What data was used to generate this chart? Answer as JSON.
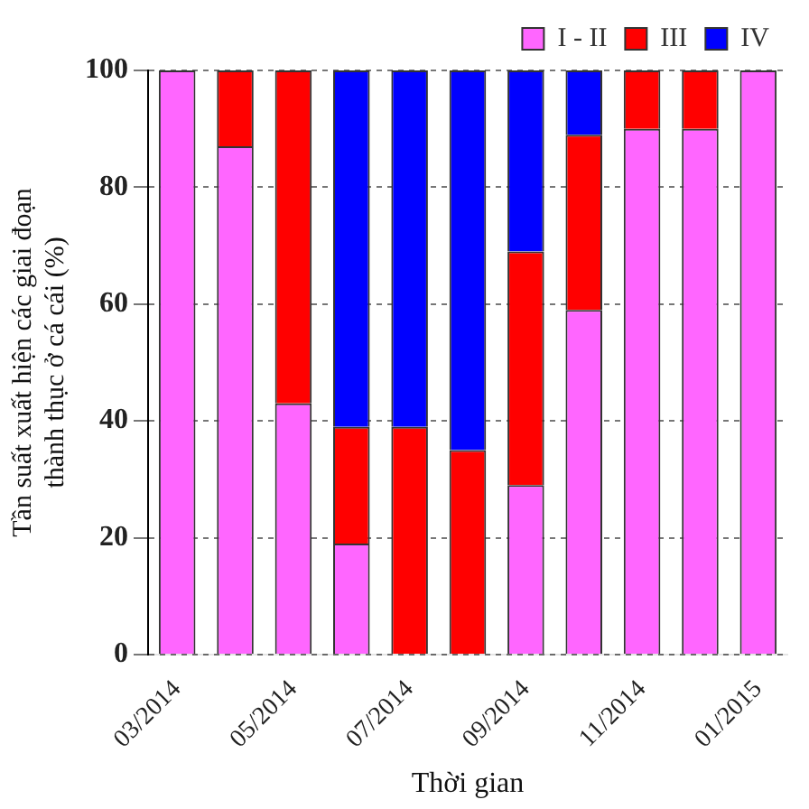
{
  "chart_data": {
    "type": "bar",
    "stacked": true,
    "xlabel": "Thời gian",
    "ylabel": "Tần suất xuất hiện các giai đoạn\nthành thục ở cá cái (%)",
    "categories": [
      "03/2014",
      null,
      "05/2014",
      null,
      "07/2014",
      null,
      "09/2014",
      null,
      "11/2014",
      null,
      "01/2015"
    ],
    "series": [
      {
        "name": "I - II",
        "color": "#ff66ff",
        "values": [
          100,
          87,
          43,
          19,
          0,
          0,
          29,
          59,
          90,
          90,
          100
        ]
      },
      {
        "name": "III",
        "color": "#ff0000",
        "values": [
          0,
          13,
          57,
          20,
          39,
          35,
          40,
          30,
          10,
          10,
          0
        ]
      },
      {
        "name": "IV",
        "color": "#0000ff",
        "values": [
          0,
          0,
          0,
          61,
          61,
          65,
          31,
          11,
          0,
          0,
          0
        ]
      }
    ],
    "ylim": [
      0,
      100
    ],
    "yticks": [
      0,
      20,
      40,
      60,
      80,
      100
    ],
    "grid": "y",
    "legend": "top"
  }
}
